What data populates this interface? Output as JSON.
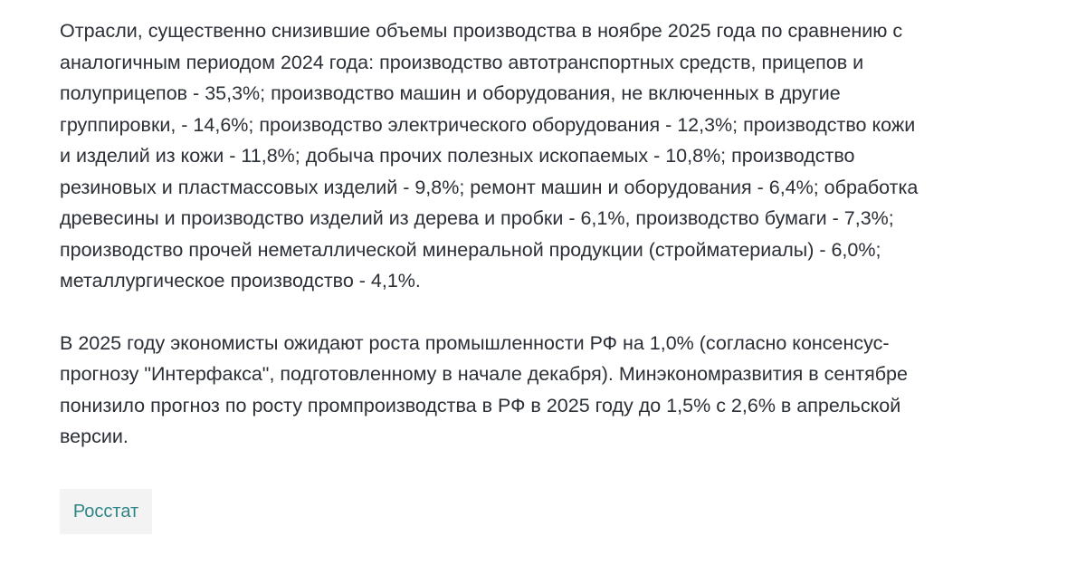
{
  "article": {
    "paragraphs": [
      {
        "lines": [
          "Отрасли, существенно снизившие объемы производства в ноябре 2025 года по сравнению с",
          "аналогичным периодом 2024 года: производство автотранспортных средств, прицепов и",
          "полуприцепов - 35,3%; производство машин и оборудования, не включенных в другие",
          "группировки, - 14,6%; производство электрического оборудования - 12,3%; производство кожи",
          "и изделий из кожи - 11,8%; добыча прочих полезных ископаемых - 10,8%; производство",
          "резиновых и пластмассовых изделий - 9,8%; ремонт машин и оборудования - 6,4%; обработка",
          "древесины и производство изделий из дерева и пробки - 6,1%, производство бумаги - 7,3%;",
          "производство прочей неметаллической минеральной продукции (стройматериалы) - 6,0%;",
          "металлургическое производство - 4,1%."
        ]
      },
      {
        "lines": [
          "В 2025 году экономисты ожидают роста промышленности РФ на 1,0% (согласно консенсус-",
          "прогнозу \"Интерфакса\", подготовленному в начале декабря). Минэкономразвития в сентябре",
          "понизило прогноз по росту промпроизводства в РФ в 2025 году до 1,5% с 2,6% в апрельской",
          "версии."
        ]
      }
    ],
    "source_tag": "Росстат"
  },
  "colors": {
    "text": "#2b2f36",
    "tag_text": "#2f8585",
    "tag_background": "#f3f3f3"
  }
}
